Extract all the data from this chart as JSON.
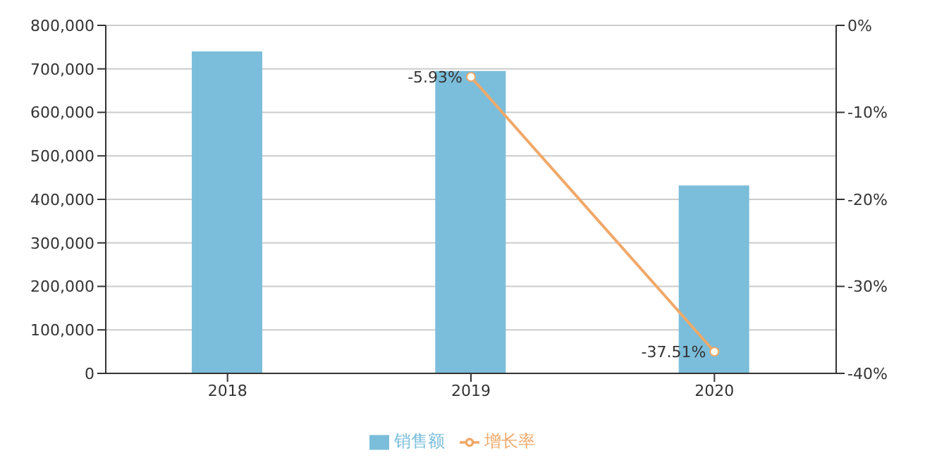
{
  "chart_data": {
    "type": "bar",
    "categories": [
      "2018",
      "2019",
      "2020"
    ],
    "series": [
      {
        "name": "销售额",
        "color": "#7bbedb",
        "values": [
          740000,
          695000,
          432000
        ]
      },
      {
        "name": "增长率",
        "type": "line",
        "axis": "y2",
        "color": "#f0a868",
        "values": [
          null,
          -5.93,
          -37.51
        ],
        "value_labels": [
          null,
          "-5.93%",
          "-37.51%"
        ]
      }
    ],
    "ylim": [
      0,
      800000
    ],
    "yticks": [
      {
        "value": 0,
        "label": "0"
      },
      {
        "value": 100000,
        "label": "100,000"
      },
      {
        "value": 200000,
        "label": "200,000"
      },
      {
        "value": 300000,
        "label": "300,000"
      },
      {
        "value": 400000,
        "label": "400,000"
      },
      {
        "value": 500000,
        "label": "500,000"
      },
      {
        "value": 600000,
        "label": "600,000"
      },
      {
        "value": 700000,
        "label": "700,000"
      },
      {
        "value": 800000,
        "label": "800,000"
      }
    ],
    "y2lim": [
      -40,
      0
    ],
    "y2ticks": [
      {
        "value": -40,
        "label": "-40%"
      },
      {
        "value": -30,
        "label": "-30%"
      },
      {
        "value": -20,
        "label": "-20%"
      },
      {
        "value": -10,
        "label": "-10%"
      },
      {
        "value": 0,
        "label": "0%"
      }
    ],
    "grid": "y",
    "legend": "bottom",
    "marker": "circle"
  }
}
